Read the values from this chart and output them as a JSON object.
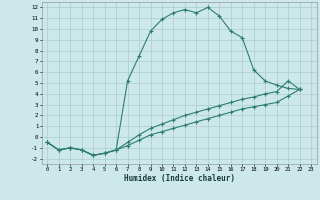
{
  "xlabel": "Humidex (Indice chaleur)",
  "bg_color": "#cde8ea",
  "grid_color": "#aacccc",
  "line_color": "#2e7d70",
  "xlim": [
    -0.5,
    23.5
  ],
  "ylim": [
    -2.5,
    12.5
  ],
  "xticks": [
    0,
    1,
    2,
    3,
    4,
    5,
    6,
    7,
    8,
    9,
    10,
    11,
    12,
    13,
    14,
    15,
    16,
    17,
    18,
    19,
    20,
    21,
    22,
    23
  ],
  "yticks": [
    -2,
    -1,
    0,
    1,
    2,
    3,
    4,
    5,
    6,
    7,
    8,
    9,
    10,
    11,
    12
  ],
  "s1_x": [
    0,
    1,
    2,
    3,
    4,
    5,
    6,
    7,
    8,
    9,
    10,
    11,
    12,
    13,
    14,
    15,
    16,
    17,
    18,
    19,
    20,
    21,
    22
  ],
  "s1_y": [
    -0.5,
    -1.2,
    -1.0,
    -1.2,
    -1.7,
    -1.5,
    -1.2,
    5.2,
    7.5,
    9.8,
    10.9,
    11.5,
    11.8,
    11.5,
    12.0,
    11.2,
    9.8,
    9.2,
    6.2,
    5.2,
    4.8,
    4.5,
    4.4
  ],
  "s2_x": [
    0,
    1,
    2,
    3,
    4,
    5,
    6,
    7,
    8,
    9,
    10,
    11,
    12,
    13,
    14,
    15,
    16,
    17,
    18,
    19,
    20,
    21,
    22
  ],
  "s2_y": [
    -0.5,
    -1.2,
    -1.0,
    -1.2,
    -1.7,
    -1.5,
    -1.2,
    -0.5,
    0.2,
    0.8,
    1.2,
    1.6,
    2.0,
    2.3,
    2.6,
    2.9,
    3.2,
    3.5,
    3.7,
    4.0,
    4.2,
    5.2,
    4.4
  ],
  "s3_x": [
    0,
    1,
    2,
    3,
    4,
    5,
    6,
    7,
    8,
    9,
    10,
    11,
    12,
    13,
    14,
    15,
    16,
    17,
    18,
    19,
    20,
    21,
    22
  ],
  "s3_y": [
    -0.5,
    -1.2,
    -1.0,
    -1.2,
    -1.7,
    -1.5,
    -1.2,
    -0.8,
    -0.3,
    0.2,
    0.5,
    0.8,
    1.1,
    1.4,
    1.7,
    2.0,
    2.3,
    2.6,
    2.8,
    3.0,
    3.2,
    3.8,
    4.4
  ]
}
